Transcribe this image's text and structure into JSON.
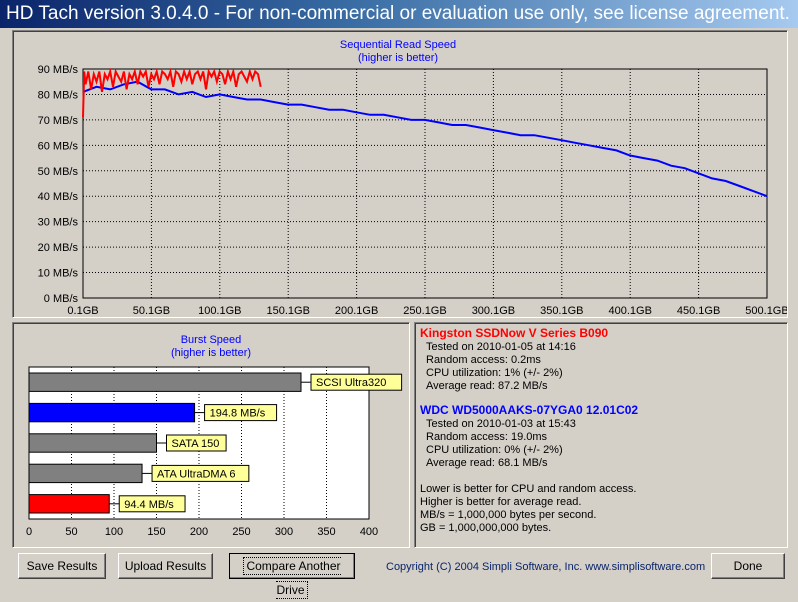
{
  "window": {
    "title": "HD Tach version 3.0.4.0  - For non-commercial or evaluation use only, see license agreement."
  },
  "colors": {
    "drive1": "#ff0000",
    "drive2": "#0000ff",
    "reference": "#808080",
    "label_bg": "#ffff99"
  },
  "chart_data": [
    {
      "type": "line",
      "title": "Sequential Read Speed",
      "subtitle": "(higher is better)",
      "x_ticks": [
        "0.1GB",
        "50.1GB",
        "100.1GB",
        "150.1GB",
        "200.1GB",
        "250.1GB",
        "300.1GB",
        "350.1GB",
        "400.1GB",
        "450.1GB",
        "500.1GB"
      ],
      "y_ticks": [
        "0 MB/s",
        "10 MB/s",
        "20 MB/s",
        "30 MB/s",
        "40 MB/s",
        "50 MB/s",
        "60 MB/s",
        "70 MB/s",
        "80 MB/s",
        "90 MB/s"
      ],
      "xlim": [
        0.1,
        500.1
      ],
      "ylim": [
        0,
        90
      ],
      "grid": true,
      "series": [
        {
          "name": "Kingston SSDNow V Series B090",
          "x": [
            0.1,
            1,
            2,
            4,
            6,
            8,
            10,
            12,
            14,
            16,
            18,
            20,
            22,
            24,
            26,
            28,
            30,
            32,
            34,
            36,
            38,
            40,
            42,
            44,
            46,
            48,
            50,
            52,
            54,
            56,
            58,
            60,
            62,
            64,
            66,
            68,
            70,
            72,
            74,
            76,
            78,
            80,
            82,
            84,
            86,
            88,
            90,
            92,
            94,
            96,
            98,
            100,
            102,
            104,
            106,
            108,
            110,
            112,
            114,
            116,
            118,
            120,
            122,
            124,
            126,
            128,
            130
          ],
          "y": [
            71,
            89,
            84,
            89,
            82,
            88,
            85,
            89,
            81,
            88,
            86,
            89,
            83,
            89,
            87,
            85,
            89,
            82,
            88,
            86,
            89,
            84,
            89,
            87,
            89,
            83,
            88,
            86,
            89,
            84,
            89,
            88,
            86,
            89,
            83,
            89,
            88,
            85,
            89,
            86,
            89,
            84,
            88,
            89,
            86,
            89,
            82,
            89,
            87,
            89,
            85,
            89,
            88,
            84,
            89,
            86,
            89,
            83,
            88,
            89,
            87,
            85,
            89,
            86,
            89,
            88,
            83
          ]
        },
        {
          "name": "WDC WD5000AAKS-07YGA0 12.01C02",
          "x": [
            0.1,
            10,
            20,
            30,
            40,
            50,
            60,
            70,
            80,
            90,
            100,
            110,
            120,
            130,
            140,
            150,
            160,
            170,
            180,
            190,
            200,
            210,
            220,
            230,
            240,
            250,
            260,
            270,
            280,
            290,
            300,
            310,
            320,
            330,
            340,
            350,
            360,
            370,
            380,
            390,
            400,
            410,
            420,
            430,
            440,
            450,
            460,
            470,
            480,
            490,
            500.1
          ],
          "y": [
            81,
            83,
            82,
            84,
            85,
            82,
            82,
            80,
            81,
            79,
            80,
            79,
            78,
            78,
            77,
            76,
            76,
            75,
            74,
            74,
            73,
            72,
            72,
            71,
            70,
            70,
            69,
            68,
            68,
            67,
            66,
            65,
            64,
            64,
            63,
            62,
            61,
            60,
            59,
            58,
            56,
            55,
            54,
            52,
            51,
            49,
            47,
            46,
            44,
            42,
            40
          ]
        }
      ]
    },
    {
      "type": "bar",
      "title": "Burst Speed",
      "subtitle": "(higher is better)",
      "x_ticks": [
        "0",
        "50",
        "100",
        "150",
        "200",
        "250",
        "300",
        "350",
        "400"
      ],
      "xlim": [
        0,
        400
      ],
      "bars": [
        {
          "label": "SCSI Ultra320",
          "value": 320,
          "color": "#808080"
        },
        {
          "label": "194.8 MB/s",
          "value": 194.8,
          "color": "#0000ff"
        },
        {
          "label": "SATA 150",
          "value": 150,
          "color": "#808080"
        },
        {
          "label": "ATA UltraDMA 6",
          "value": 133,
          "color": "#808080"
        },
        {
          "label": "94.4 MB/s",
          "value": 94.4,
          "color": "#ff0000"
        }
      ]
    }
  ],
  "info": {
    "drive1": {
      "name": "Kingston SSDNow V Series B090",
      "tested": "Tested on 2010-01-05 at 14:16",
      "random": "Random access: 0.2ms",
      "cpu": "CPU utilization: 1% (+/- 2%)",
      "avg": "Average read: 87.2 MB/s"
    },
    "drive2": {
      "name": "WDC WD5000AAKS-07YGA0 12.01C02",
      "tested": "Tested on 2010-01-03 at 15:43",
      "random": "Random access: 19.0ms",
      "cpu": "CPU utilization: 0% (+/- 2%)",
      "avg": "Average read: 68.1 MB/s"
    },
    "notes": [
      "Lower is better for CPU and random access.",
      "Higher is better for average read.",
      "MB/s = 1,000,000 bytes per second.",
      "GB = 1,000,000,000 bytes."
    ]
  },
  "buttons": {
    "save": "Save Results",
    "upload": "Upload Results",
    "compare": "Compare Another Drive",
    "done": "Done"
  },
  "footer": {
    "copyright": "Copyright (C) 2004 Simpli Software, Inc. www.simplisoftware.com"
  }
}
